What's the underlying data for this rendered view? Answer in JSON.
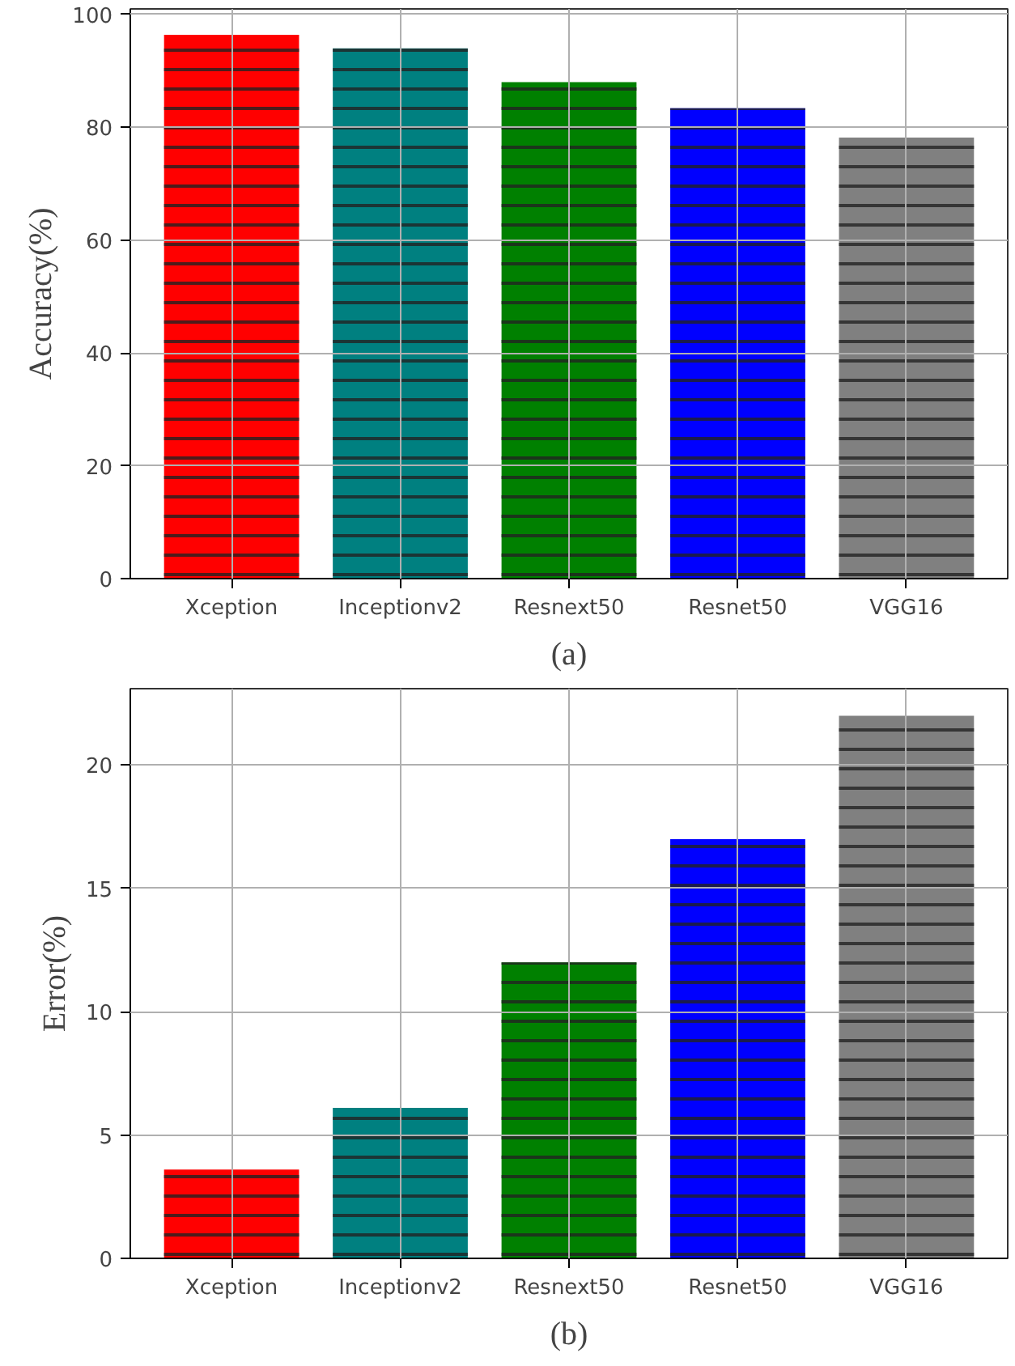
{
  "chart_data": [
    {
      "type": "bar",
      "ylabel": "Accuracy(%)",
      "categories": [
        "Xception",
        "Inceptionv2",
        "Resnext50",
        "Resnet50",
        "VGG16"
      ],
      "values": [
        96.4,
        94.0,
        88.0,
        83.4,
        78.2
      ],
      "colors": [
        "#ff0000",
        "#008080",
        "#008000",
        "#0000ff",
        "#808080"
      ],
      "ylim": [
        0,
        101
      ],
      "yticks": [
        0,
        20,
        40,
        60,
        80,
        100
      ],
      "grid": true,
      "annotations": [
        "(a)"
      ]
    },
    {
      "type": "bar",
      "ylabel": "Error(%)",
      "categories": [
        "Xception",
        "Inceptionv2",
        "Resnext50",
        "Resnet50",
        "VGG16"
      ],
      "values": [
        3.6,
        6.1,
        12.0,
        17.0,
        22.0
      ],
      "colors": [
        "#ff0000",
        "#008080",
        "#008000",
        "#0000ff",
        "#808080"
      ],
      "ylim": [
        0,
        23.1
      ],
      "yticks": [
        0,
        5,
        10,
        15,
        20
      ],
      "grid": true,
      "annotations": [
        "(b)"
      ]
    }
  ]
}
